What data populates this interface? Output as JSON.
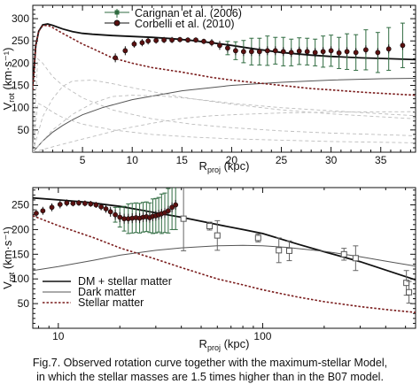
{
  "caption": {
    "line1": "Fig.7. Observed rotation curve together with the maximum-stellar Model,",
    "line2": "in which the stellar masses are 1.5 times higher than in the B07 model."
  },
  "chart_data": [
    {
      "type": "line",
      "scale": "linear",
      "xlabel": {
        "main": "R",
        "sub": "proj",
        "rest": " (kpc)"
      },
      "ylabel": {
        "main": "V",
        "sub": "rot",
        "rest": " (km·s⁻¹)"
      },
      "xlim": [
        0,
        38.5
      ],
      "ylim": [
        0,
        330
      ],
      "xticks": [
        5,
        10,
        15,
        20,
        25,
        30,
        35
      ],
      "yticks": [
        50,
        100,
        150,
        200,
        250,
        300
      ],
      "legend": {
        "placement": "top-center",
        "entries": [
          "Carignan et al. (2006)",
          "Corbelli et al. (2010)"
        ]
      },
      "colors": {
        "total": "#111111",
        "dark": "#555555",
        "stellar": "#7a1c1c",
        "green": "#2f6b40",
        "components": "#bdbdbd",
        "points": "#111111"
      },
      "series": [
        {
          "role": "total",
          "x": [
            0,
            0.3,
            0.6,
            1,
            1.5,
            2,
            3,
            4,
            5,
            6,
            8,
            10,
            12,
            14,
            16,
            18,
            20,
            22,
            25,
            28,
            30,
            33,
            36,
            38.5
          ],
          "y": [
            150,
            240,
            272,
            286,
            288,
            285,
            277,
            271,
            267,
            265,
            262,
            260,
            258,
            255,
            251,
            246,
            240,
            233,
            224,
            218,
            215,
            212,
            210,
            208
          ]
        },
        {
          "role": "dark",
          "x": [
            0,
            1,
            2,
            3,
            4,
            5,
            7,
            10,
            15,
            20,
            25,
            30,
            35,
            38.5
          ],
          "y": [
            0,
            25,
            45,
            60,
            73,
            84,
            100,
            118,
            138,
            150,
            157,
            162,
            165,
            166
          ]
        },
        {
          "role": "stellar",
          "x": [
            0,
            0.3,
            0.6,
            1,
            1.5,
            2,
            3,
            4,
            5,
            6,
            8,
            10,
            12,
            15,
            18,
            20,
            22,
            25,
            28,
            30,
            33,
            36,
            38.5
          ],
          "y": [
            140,
            240,
            272,
            284,
            285,
            280,
            267,
            255,
            243,
            233,
            212,
            200,
            190,
            180,
            168,
            162,
            157,
            150,
            143,
            140,
            135,
            131,
            128
          ]
        },
        {
          "role": "component",
          "x": [
            0,
            1,
            2,
            3,
            4,
            6,
            8,
            10,
            13,
            16,
            20,
            25,
            30,
            38.5
          ],
          "y": [
            0,
            80,
            120,
            148,
            160,
            162,
            154,
            145,
            132,
            120,
            108,
            95,
            86,
            75
          ]
        },
        {
          "role": "component",
          "x": [
            0,
            2,
            4,
            6,
            8,
            10,
            13,
            16,
            20,
            25,
            30,
            38.5
          ],
          "y": [
            0,
            50,
            85,
            110,
            125,
            128,
            126,
            120,
            110,
            100,
            93,
            82
          ]
        },
        {
          "role": "component",
          "x": [
            0,
            0.5,
            1,
            2,
            3,
            5,
            8,
            12,
            16,
            20,
            25,
            30,
            38.5
          ],
          "y": [
            0,
            210,
            200,
            170,
            150,
            122,
            95,
            75,
            63,
            55,
            48,
            43,
            37
          ]
        },
        {
          "role": "component",
          "x": [
            0,
            3,
            6,
            9,
            12,
            15,
            18,
            21,
            25,
            30,
            38.5
          ],
          "y": [
            0,
            18,
            35,
            52,
            65,
            76,
            82,
            85,
            88,
            90,
            91
          ]
        },
        {
          "role": "component",
          "x": [
            0,
            0.5,
            1,
            2,
            3,
            5,
            8,
            12,
            16,
            20,
            25,
            30,
            38.5
          ],
          "y": [
            0,
            110,
            105,
            90,
            78,
            63,
            50,
            40,
            34,
            30,
            27,
            24,
            21
          ]
        }
      ],
      "points": [
        {
          "x": 8.3,
          "y": 212,
          "err": 10,
          "kind": "circle"
        },
        {
          "x": 9.3,
          "y": 228,
          "err": 10,
          "kind": "circle"
        },
        {
          "x": 10.2,
          "y": 243,
          "err": 8,
          "kind": "circle"
        },
        {
          "x": 11.0,
          "y": 246,
          "err": 8,
          "kind": "circle"
        },
        {
          "x": 11.6,
          "y": 250,
          "err": 8,
          "kind": "circle"
        },
        {
          "x": 12.4,
          "y": 251,
          "err": 7,
          "kind": "circle"
        },
        {
          "x": 13.2,
          "y": 252,
          "err": 7,
          "kind": "circle"
        },
        {
          "x": 14.0,
          "y": 252,
          "err": 7,
          "kind": "circle"
        },
        {
          "x": 14.8,
          "y": 253,
          "err": 6,
          "kind": "circle"
        },
        {
          "x": 15.6,
          "y": 252,
          "err": 6,
          "kind": "circle"
        },
        {
          "x": 16.4,
          "y": 252,
          "err": 6,
          "kind": "circle"
        },
        {
          "x": 17.2,
          "y": 249,
          "err": 6,
          "kind": "circle"
        },
        {
          "x": 18.0,
          "y": 246,
          "err": 8,
          "kind": "circle"
        },
        {
          "x": 18.8,
          "y": 240,
          "err": 10,
          "kind": "circle"
        },
        {
          "x": 19.6,
          "y": 234,
          "err": 15,
          "kind": "circle"
        },
        {
          "x": 20.4,
          "y": 228,
          "err": 20,
          "kind": "circle"
        },
        {
          "x": 21.2,
          "y": 226,
          "err": 25,
          "kind": "circle"
        },
        {
          "x": 22.0,
          "y": 226,
          "err": 30,
          "kind": "circle"
        },
        {
          "x": 22.8,
          "y": 226,
          "err": 30,
          "kind": "circle"
        },
        {
          "x": 23.6,
          "y": 228,
          "err": 33,
          "kind": "circle"
        },
        {
          "x": 24.4,
          "y": 228,
          "err": 30,
          "kind": "circle"
        },
        {
          "x": 25.2,
          "y": 226,
          "err": 32,
          "kind": "circle"
        },
        {
          "x": 26.0,
          "y": 224,
          "err": 30,
          "kind": "circle"
        },
        {
          "x": 26.8,
          "y": 227,
          "err": 30,
          "kind": "circle"
        },
        {
          "x": 27.6,
          "y": 226,
          "err": 30,
          "kind": "circle"
        },
        {
          "x": 28.4,
          "y": 224,
          "err": 30,
          "kind": "circle"
        },
        {
          "x": 29.2,
          "y": 226,
          "err": 35,
          "kind": "circle"
        },
        {
          "x": 30.0,
          "y": 228,
          "err": 35,
          "kind": "circle"
        },
        {
          "x": 30.8,
          "y": 223,
          "err": 35,
          "kind": "circle"
        },
        {
          "x": 31.6,
          "y": 226,
          "err": 40,
          "kind": "circle"
        },
        {
          "x": 32.5,
          "y": 224,
          "err": 40,
          "kind": "circle"
        },
        {
          "x": 33.5,
          "y": 230,
          "err": 45,
          "kind": "circle"
        },
        {
          "x": 34.7,
          "y": 224,
          "err": 45,
          "kind": "circle"
        },
        {
          "x": 35.8,
          "y": 232,
          "err": 48,
          "kind": "circle"
        },
        {
          "x": 37.2,
          "y": 240,
          "err": 50,
          "kind": "circle"
        }
      ]
    },
    {
      "type": "line",
      "scale": "log-x",
      "xlabel": {
        "main": "R",
        "sub": "proj",
        "rest": " (kpc)"
      },
      "ylabel": {
        "main": "V",
        "sub": "rot",
        "rest": " (km·s⁻¹)"
      },
      "xlim": [
        7.5,
        560
      ],
      "ylim": [
        0,
        285
      ],
      "xticks": [
        10,
        100
      ],
      "yticks": [
        50,
        100,
        150,
        200,
        250
      ],
      "legend": {
        "placement": "bottom-left",
        "entries": [
          "DM + stellar matter",
          "Dark matter",
          "Stellar matter"
        ]
      },
      "colors": {
        "total": "#111111",
        "dark": "#555555",
        "stellar": "#7a1c1c",
        "green": "#2f6b40",
        "points": "#111111"
      },
      "series": [
        {
          "role": "total",
          "x": [
            7.5,
            10,
            14,
            20,
            25,
            30,
            40,
            60,
            80,
            100,
            150,
            200,
            300,
            400,
            560
          ],
          "y": [
            264,
            260,
            255,
            247,
            240,
            234,
            225,
            210,
            200,
            192,
            170,
            155,
            135,
            118,
            98
          ]
        },
        {
          "role": "dark",
          "x": [
            7.5,
            10,
            15,
            20,
            30,
            40,
            60,
            80,
            100,
            130,
            200,
            300,
            400,
            560
          ],
          "y": [
            117,
            125,
            138,
            148,
            158,
            163,
            167,
            168,
            167,
            164,
            156,
            145,
            136,
            126
          ]
        },
        {
          "role": "stellar",
          "x": [
            7.5,
            10,
            15,
            20,
            30,
            40,
            60,
            80,
            100,
            150,
            200,
            300,
            400,
            560
          ],
          "y": [
            228,
            208,
            183,
            163,
            140,
            123,
            100,
            88,
            78,
            63,
            54,
            44,
            38,
            32
          ]
        }
      ],
      "points": [
        {
          "x": 7.8,
          "y": 233,
          "err": 8,
          "kind": "circle"
        },
        {
          "x": 8.4,
          "y": 238,
          "err": 8,
          "kind": "circle"
        },
        {
          "x": 9.3,
          "y": 245,
          "err": 8,
          "kind": "circle"
        },
        {
          "x": 10.2,
          "y": 251,
          "err": 8,
          "kind": "circle"
        },
        {
          "x": 11.0,
          "y": 254,
          "err": 7,
          "kind": "circle"
        },
        {
          "x": 11.8,
          "y": 253,
          "err": 6,
          "kind": "circle"
        },
        {
          "x": 12.6,
          "y": 254,
          "err": 6,
          "kind": "circle"
        },
        {
          "x": 13.5,
          "y": 253,
          "err": 6,
          "kind": "circle"
        },
        {
          "x": 14.4,
          "y": 252,
          "err": 6,
          "kind": "circle"
        },
        {
          "x": 15.3,
          "y": 250,
          "err": 6,
          "kind": "circle"
        },
        {
          "x": 16.2,
          "y": 246,
          "err": 7,
          "kind": "circle"
        },
        {
          "x": 17.1,
          "y": 242,
          "err": 8,
          "kind": "circle"
        },
        {
          "x": 18.0,
          "y": 236,
          "err": 10,
          "kind": "circle"
        },
        {
          "x": 19.0,
          "y": 230,
          "err": 15,
          "kind": "circle"
        },
        {
          "x": 20.0,
          "y": 225,
          "err": 20,
          "kind": "circle"
        },
        {
          "x": 21.0,
          "y": 222,
          "err": 25,
          "kind": "circle"
        },
        {
          "x": 22.0,
          "y": 222,
          "err": 30,
          "kind": "circle"
        },
        {
          "x": 23.0,
          "y": 223,
          "err": 30,
          "kind": "circle"
        },
        {
          "x": 24.0,
          "y": 224,
          "err": 30,
          "kind": "circle"
        },
        {
          "x": 25.0,
          "y": 223,
          "err": 30,
          "kind": "circle"
        },
        {
          "x": 26.0,
          "y": 225,
          "err": 30,
          "kind": "circle"
        },
        {
          "x": 27.0,
          "y": 226,
          "err": 30,
          "kind": "circle"
        },
        {
          "x": 28.0,
          "y": 224,
          "err": 30,
          "kind": "circle"
        },
        {
          "x": 29.0,
          "y": 227,
          "err": 35,
          "kind": "circle"
        },
        {
          "x": 30.0,
          "y": 228,
          "err": 35,
          "kind": "circle"
        },
        {
          "x": 31.0,
          "y": 230,
          "err": 35,
          "kind": "circle"
        },
        {
          "x": 32.0,
          "y": 232,
          "err": 40,
          "kind": "circle"
        },
        {
          "x": 33.2,
          "y": 234,
          "err": 40,
          "kind": "circle"
        },
        {
          "x": 34.5,
          "y": 238,
          "err": 45,
          "kind": "circle"
        },
        {
          "x": 36.0,
          "y": 245,
          "err": 45,
          "kind": "circle"
        },
        {
          "x": 37.5,
          "y": 250,
          "err": 50,
          "kind": "circle"
        },
        {
          "x": 41,
          "y": 222,
          "err": 65,
          "kind": "square"
        },
        {
          "x": 55,
          "y": 207,
          "err": 8,
          "kind": "square"
        },
        {
          "x": 60,
          "y": 188,
          "err": 30,
          "kind": "square"
        },
        {
          "x": 95,
          "y": 183,
          "err": 8,
          "kind": "square"
        },
        {
          "x": 120,
          "y": 158,
          "err": 25,
          "kind": "square"
        },
        {
          "x": 135,
          "y": 157,
          "err": 20,
          "kind": "square"
        },
        {
          "x": 250,
          "y": 150,
          "err": 12,
          "kind": "square"
        },
        {
          "x": 285,
          "y": 142,
          "err": 25,
          "kind": "square"
        },
        {
          "x": 505,
          "y": 92,
          "err": 25,
          "kind": "square"
        },
        {
          "x": 520,
          "y": 73,
          "err": 22,
          "kind": "square"
        }
      ]
    }
  ]
}
